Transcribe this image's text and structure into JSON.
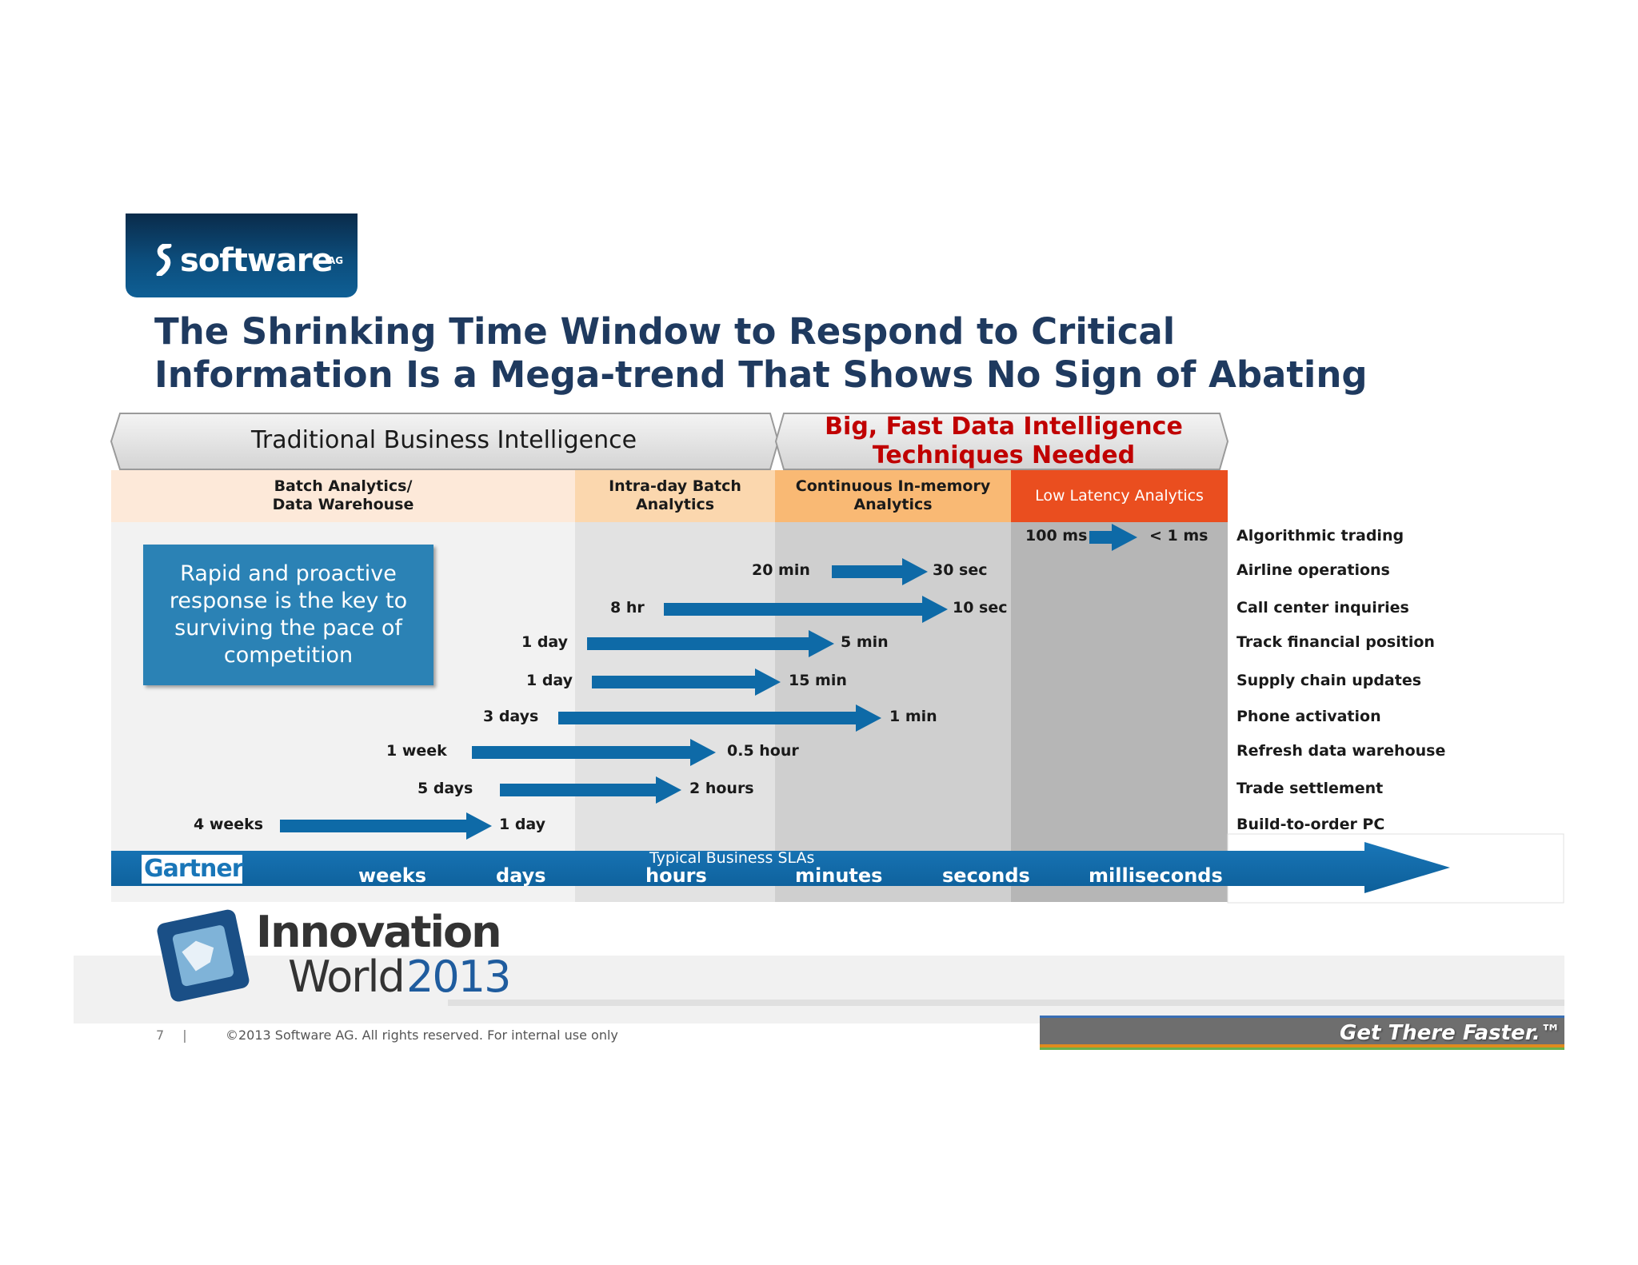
{
  "logo": {
    "text": "software",
    "suffix": "AG"
  },
  "title": "The Shrinking Time Window to Respond to Critical Information Is a Mega-trend That Shows No Sign of Abating",
  "banners": {
    "traditional": "Traditional Business Intelligence",
    "fast_line1": "Big, Fast Data Intelligence",
    "fast_line2": "Techniques Needed"
  },
  "columns": [
    {
      "line1": "Batch Analytics/",
      "line2": "Data Warehouse"
    },
    {
      "line1": "Intra-day Batch",
      "line2": "Analytics"
    },
    {
      "line1": "Continuous In-memory",
      "line2": "Analytics"
    },
    {
      "line1": "Low Latency Analytics",
      "line2": ""
    }
  ],
  "colors": {
    "col_batch": "#fde9d9",
    "col_intraday": "#fbd7ae",
    "col_continuous": "#f9b974",
    "col_lowlatency": "#ea4e1f",
    "arrow": "#0e6aa7",
    "fast_title": "#c00000",
    "title": "#1f3a5f"
  },
  "callout": "Rapid and proactive response is the key to surviving the pace of competition",
  "rows": [
    {
      "from": "100 ms",
      "to": "< 1 ms",
      "label": "Algorithmic trading"
    },
    {
      "from": "20 min",
      "to": "30 sec",
      "label": "Airline operations"
    },
    {
      "from": "8 hr",
      "to": "10 sec",
      "label": "Call center inquiries"
    },
    {
      "from": "1 day",
      "to": "5 min",
      "label": "Track financial position"
    },
    {
      "from": "1 day",
      "to": "15 min",
      "label": "Supply chain updates"
    },
    {
      "from": "3 days",
      "to": "1 min",
      "label": "Phone activation"
    },
    {
      "from": "1 week",
      "to": "0.5 hour",
      "label": "Refresh data warehouse"
    },
    {
      "from": "5 days",
      "to": "2 hours",
      "label": "Trade settlement"
    },
    {
      "from": "4 weeks",
      "to": "1 day",
      "label": "Build-to-order PC"
    }
  ],
  "axis": {
    "source": "Gartner",
    "caption": "Typical Business SLAs",
    "units": [
      "weeks",
      "days",
      "hours",
      "minutes",
      "seconds",
      "milliseconds"
    ]
  },
  "event": {
    "line1": "Innovation",
    "line2": "World",
    "year": "2013"
  },
  "footer": {
    "page": "7",
    "sep": "|",
    "copyright": "©2013 Software AG. All rights reserved. For internal use only",
    "tagline": "Get There Faster.™"
  }
}
